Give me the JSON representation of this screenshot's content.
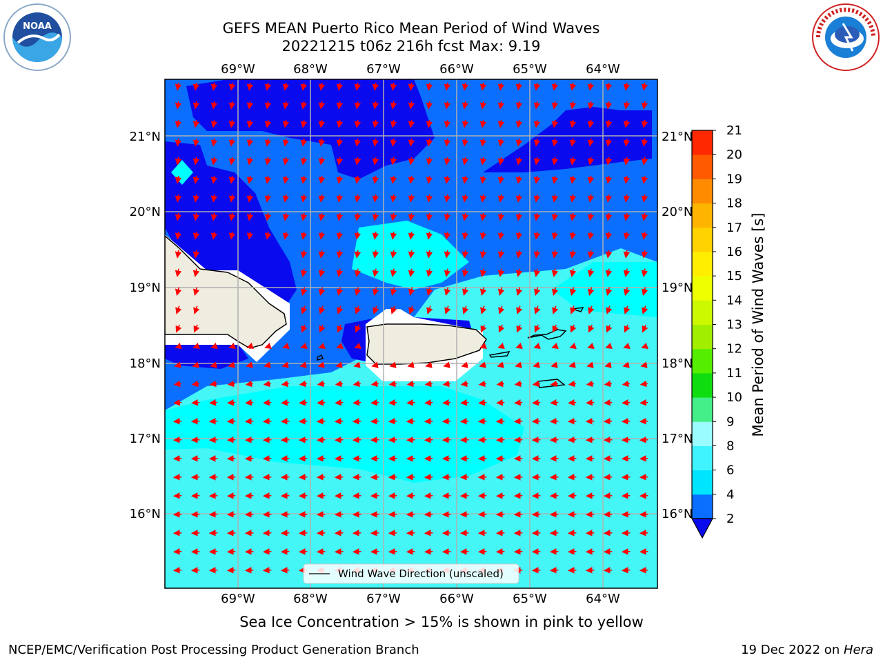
{
  "title": {
    "line1": "GEFS MEAN Puerto Rico Mean Period of Wind Waves",
    "line2": "20221215 t06z 216h fcst   Max: 9.19"
  },
  "map": {
    "lon_labels": [
      "69°W",
      "68°W",
      "67°W",
      "66°W",
      "65°W",
      "64°W"
    ],
    "lat_labels": [
      "21°N",
      "20°N",
      "19°N",
      "18°N",
      "17°N",
      "16°N"
    ],
    "legend_label": "Wind Wave Direction (unscaled)",
    "region": "Puerto Rico",
    "lon_range": [
      -70,
      -63.3
    ],
    "lat_range": [
      15,
      21.7
    ]
  },
  "colorbar": {
    "label": "Mean Period of Wind Waves [s]",
    "ticks": [
      "2",
      "4",
      "6",
      "8",
      "9",
      "10",
      "11",
      "12",
      "13",
      "14",
      "15",
      "16",
      "17",
      "18",
      "19",
      "20",
      "21"
    ],
    "colors": [
      "#0a6fff",
      "#00e5ff",
      "#3ff3ff",
      "#9bfcff",
      "#44ee88",
      "#10dd10",
      "#55ee00",
      "#a2ee00",
      "#ccf800",
      "#eeff00",
      "#ffee00",
      "#ffd200",
      "#ffb400",
      "#ff8c00",
      "#ff5a00",
      "#ff2800"
    ],
    "under_color": "#0a0aee"
  },
  "logos": {
    "left": "NOAA",
    "right": "NATIONAL WEATHER SERVICE"
  },
  "caption": "Sea Ice Concentration > 15% is shown in pink to yellow",
  "footer": {
    "left": "NCEP/EMC/Verification Post Processing Product Generation Branch",
    "right_prefix": "19 Dec 2022 on ",
    "right_host": "Hera"
  },
  "colors": {
    "land": "#efede0",
    "deep_blue": "#0a0aee",
    "mid_blue": "#0a6fff",
    "cyan": "#00ffff",
    "light_cyan": "#44f6f6",
    "arrow": "#ff0000",
    "grid": "#b0b0b0"
  }
}
